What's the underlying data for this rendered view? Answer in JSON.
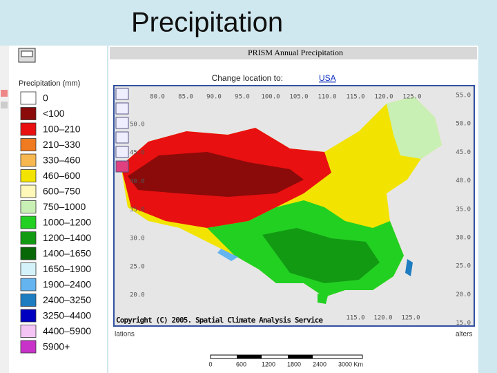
{
  "slide_title": "Precipitation",
  "legend": {
    "title": "Precipitation (mm)",
    "items": [
      {
        "label": "0",
        "color": "#ffffff"
      },
      {
        "label": "<100",
        "color": "#8b0a0a"
      },
      {
        "label": "100–210",
        "color": "#e81010"
      },
      {
        "label": "210–330",
        "color": "#f07a20"
      },
      {
        "label": "330–460",
        "color": "#f8b850"
      },
      {
        "label": "460–600",
        "color": "#f2e400"
      },
      {
        "label": "600–750",
        "color": "#fff8b8"
      },
      {
        "label": "750–1000",
        "color": "#c8f0b4"
      },
      {
        "label": "1000–1200",
        "color": "#22d022"
      },
      {
        "label": "1200–1400",
        "color": "#129a12"
      },
      {
        "label": "1400–1650",
        "color": "#086808"
      },
      {
        "label": "1650–1900",
        "color": "#d4f2fa"
      },
      {
        "label": "1900–2400",
        "color": "#64b4f0"
      },
      {
        "label": "2400–3250",
        "color": "#1e7cc0"
      },
      {
        "label": "3250–4400",
        "color": "#0000c0"
      },
      {
        "label": "4400–5900",
        "color": "#f4c4f4"
      },
      {
        "label": "5900+",
        "color": "#c832c8"
      }
    ]
  },
  "panel": {
    "header": "PRISM  Annual Precipitation",
    "change_location": "Change location to:",
    "location_link": "USA",
    "copyright": "Copyright (C) 2005. Spatial Climate Analysis Service",
    "footer_left": "lations",
    "footer_right": "alters"
  },
  "map": {
    "top_lon_labels": [
      "80.0",
      "85.0",
      "90.0",
      "95.0",
      "100.0",
      "105.0",
      "110.0",
      "115.0",
      "120.0",
      "125.0"
    ],
    "bottom_lon_labels": [
      "115.0",
      "120.0",
      "125.0"
    ],
    "right_lat_labels": [
      "55.0",
      "50.0",
      "45.0",
      "40.0",
      "35.0",
      "30.0",
      "25.0",
      "20.0",
      "15.0"
    ],
    "left_lat_labels": [
      "50.0",
      "45.0",
      "40.0",
      "35.0",
      "30.0",
      "25.0",
      "20.0"
    ]
  },
  "scale_bar": {
    "labels": [
      "0",
      "600",
      "1200",
      "1800",
      "2400",
      "3000 Km"
    ]
  }
}
